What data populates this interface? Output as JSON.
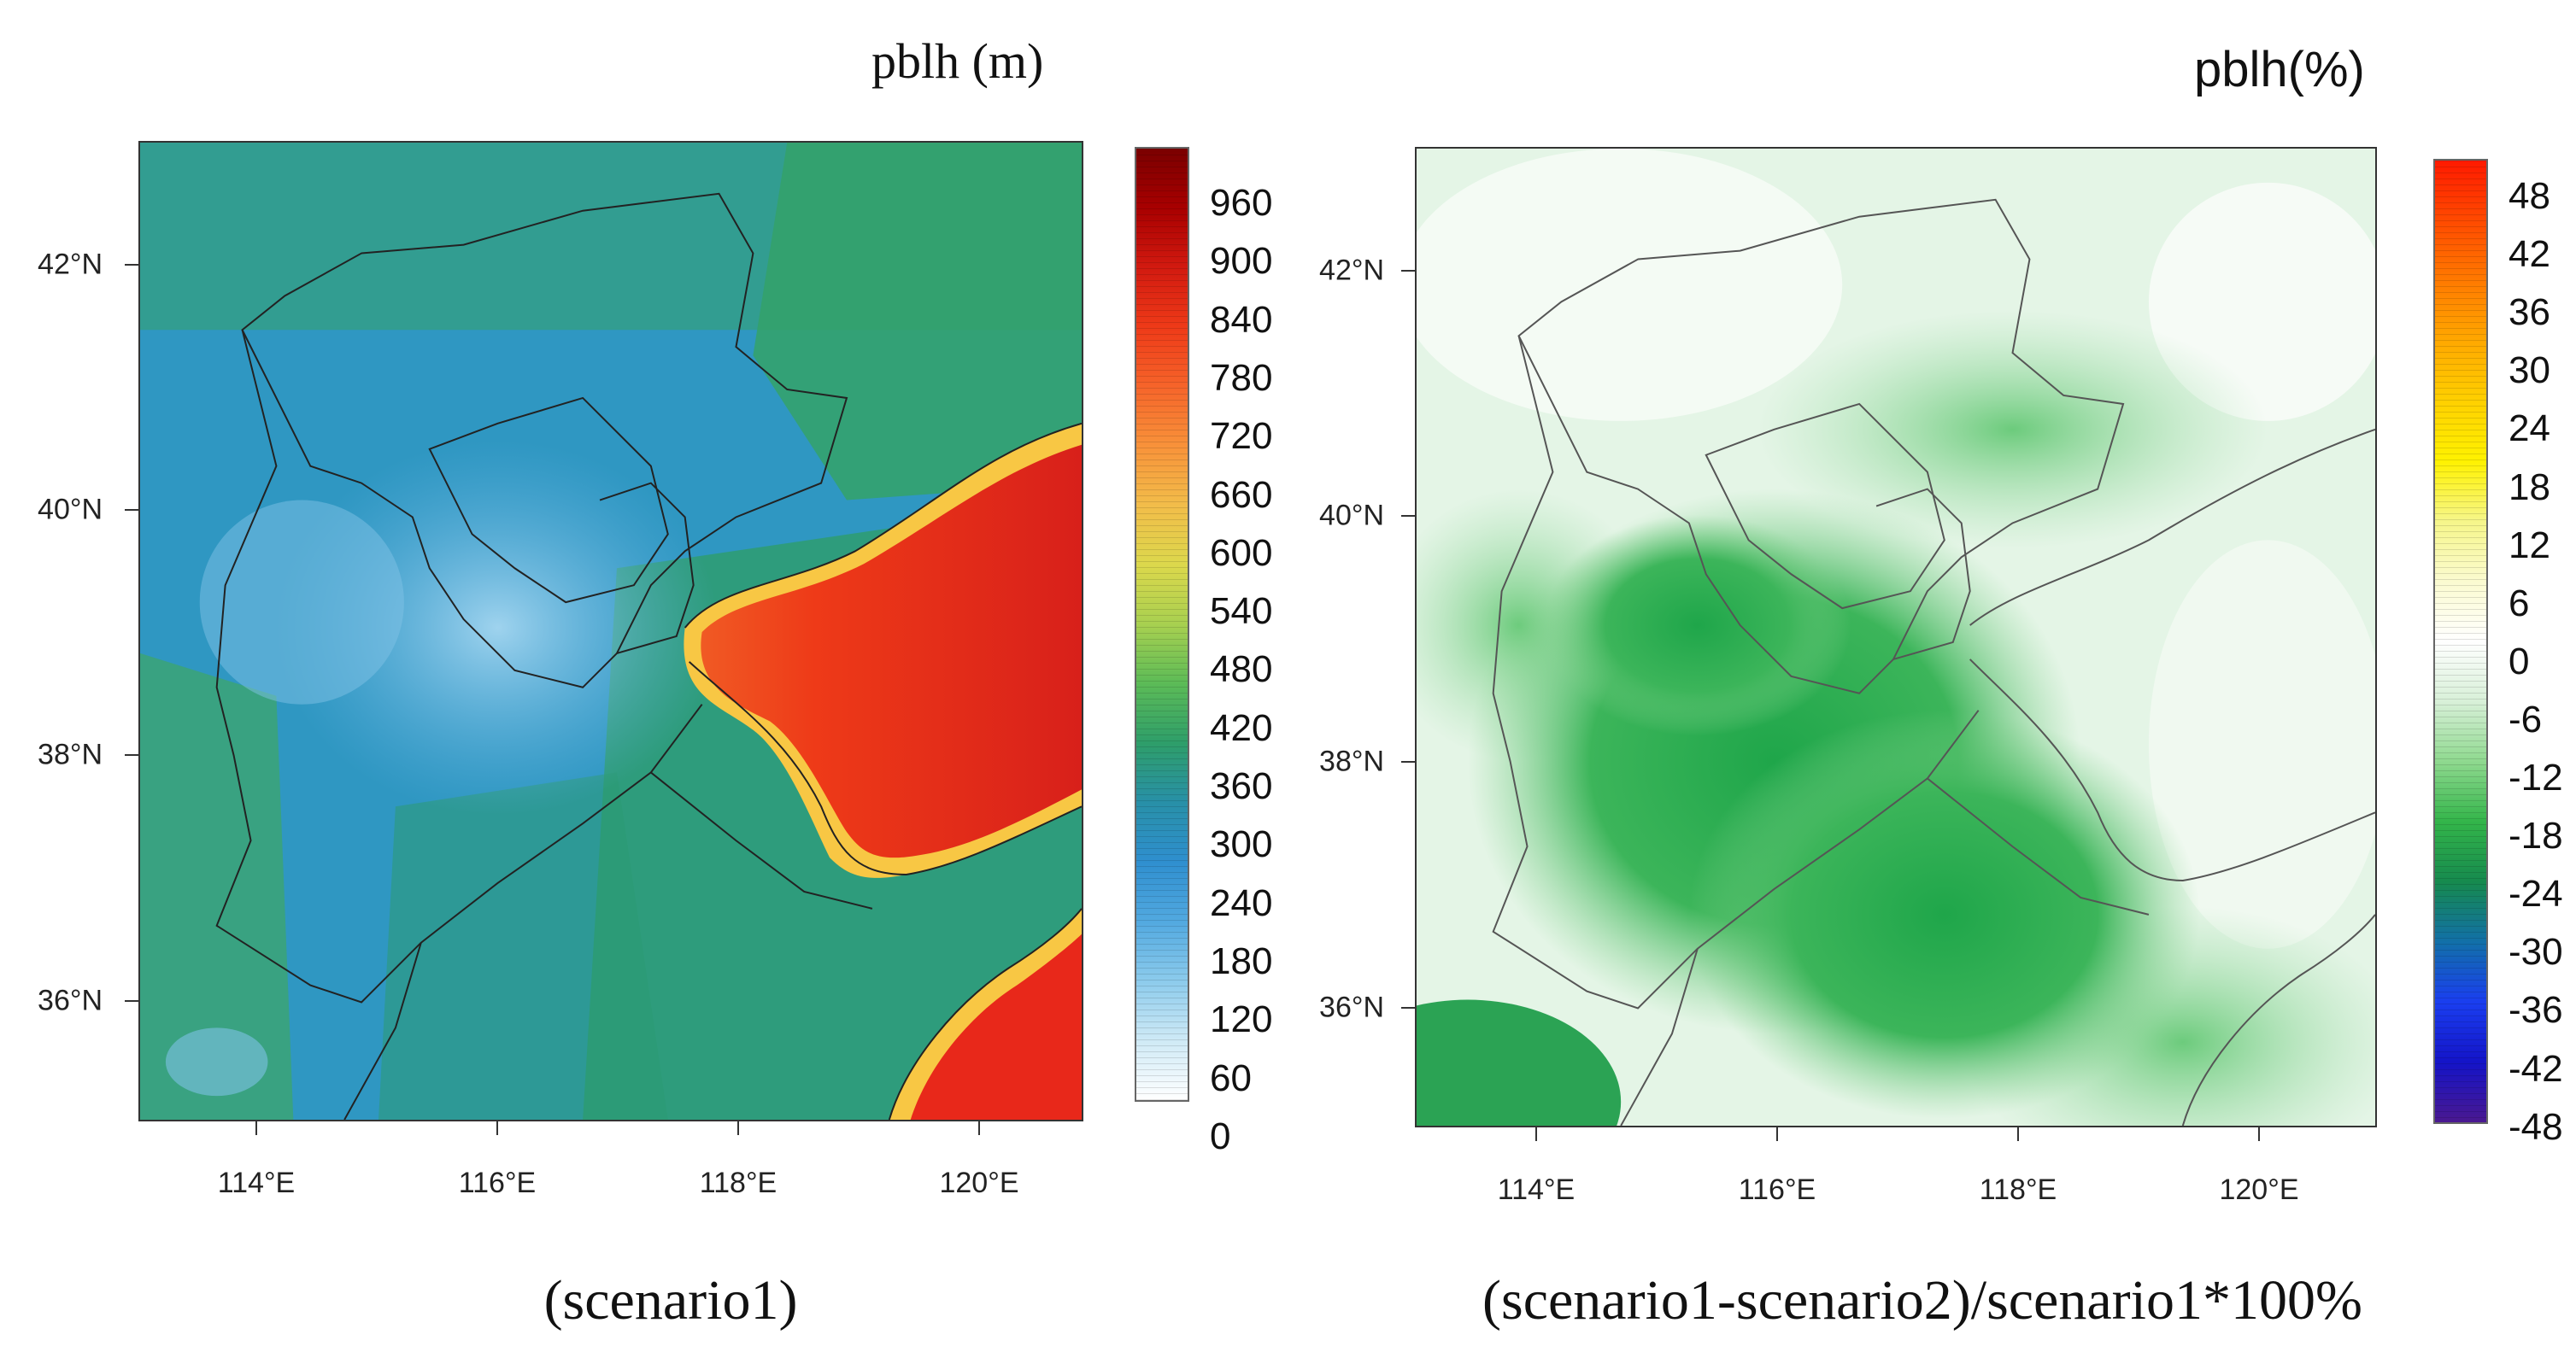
{
  "panels": [
    {
      "unit_title": "pblh  (m)",
      "caption": "(scenario1)",
      "colorbar_labels": [
        "960",
        "900",
        "840",
        "780",
        "720",
        "660",
        "600",
        "540",
        "480",
        "420",
        "360",
        "300",
        "240",
        "180",
        "120",
        "60",
        "0"
      ],
      "colorbar_colors": [
        "#7a0000",
        "#a80000",
        "#d21a10",
        "#ee3a18",
        "#f6642a",
        "#f8923a",
        "#f2bd4a",
        "#dcd84c",
        "#a8d050",
        "#5cbb57",
        "#2e9e6a",
        "#2890a8",
        "#2f8fcf",
        "#52a9e0",
        "#8ccbec",
        "#cfeaf6",
        "#ffffff"
      ],
      "lat_labels": [
        "42°N",
        "40°N",
        "38°N",
        "36°N"
      ],
      "lon_labels": [
        "114°E",
        "116°E",
        "118°E",
        "120°E"
      ]
    },
    {
      "unit_title": "pblh(%)",
      "caption": "(scenario1-scenario2)/scenario1*100%",
      "colorbar_labels": [
        "48",
        "42",
        "36",
        "30",
        "24",
        "18",
        "12",
        "6",
        "0",
        "-6",
        "-12",
        "-18",
        "-24",
        "-30",
        "-36",
        "-42",
        "-48"
      ],
      "colorbar_colors": [
        "#ff1a00",
        "#ff4a00",
        "#ff7a00",
        "#ffa800",
        "#ffd000",
        "#fff200",
        "#f6f68a",
        "#fbfbd0",
        "#ffffff",
        "#d8f0d8",
        "#8fd98f",
        "#33b54a",
        "#168a4e",
        "#1270a8",
        "#1a3ef0",
        "#1414c8",
        "#4a1890"
      ],
      "lat_labels": [
        "42°N",
        "40°N",
        "38°N",
        "36°N"
      ],
      "lon_labels": [
        "114°E",
        "116°E",
        "118°E",
        "120°E"
      ]
    }
  ]
}
